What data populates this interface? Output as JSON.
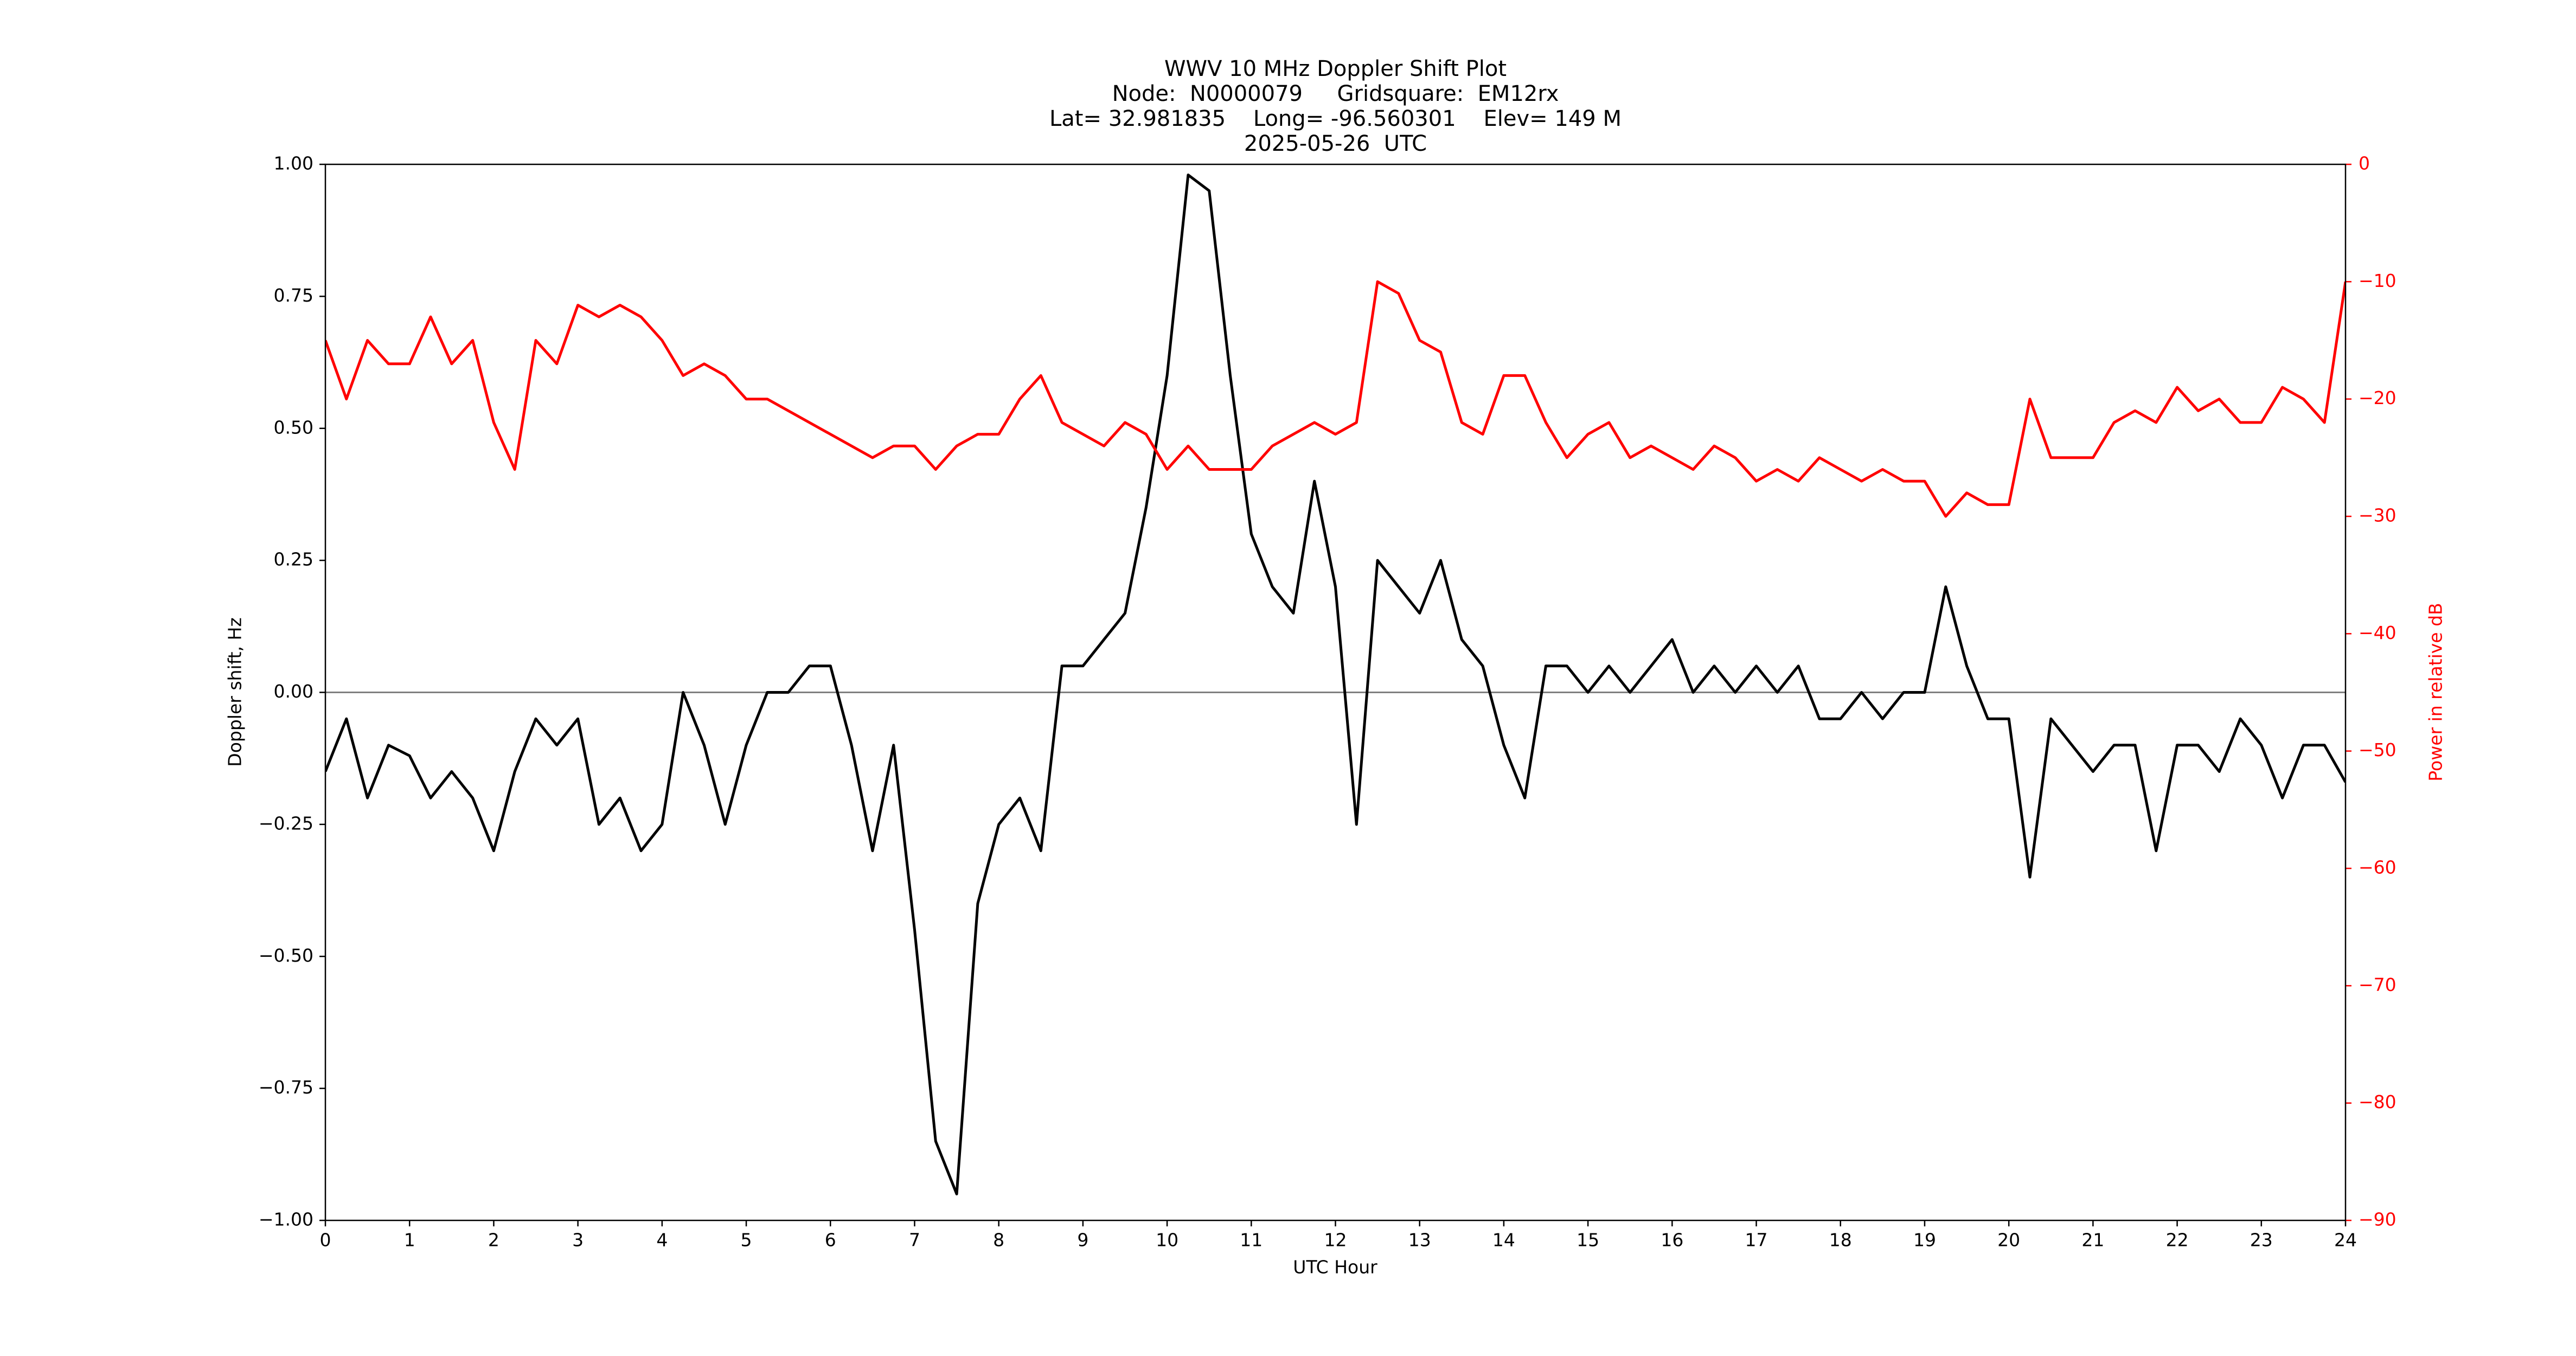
{
  "chart_data": {
    "type": "line",
    "title_lines": [
      "WWV 10 MHz Doppler Shift Plot",
      "Node:  N0000079     Gridsquare:  EM12rx",
      "Lat= 32.981835    Long= -96.560301    Elev= 149 M",
      "2025-05-26  UTC"
    ],
    "x_label": "UTC Hour",
    "y_label": "Doppler shift, Hz",
    "y2_label": "Power in relative dB",
    "x": [
      0,
      0.25,
      0.5,
      0.75,
      1,
      1.25,
      1.5,
      1.75,
      2,
      2.25,
      2.5,
      2.75,
      3,
      3.25,
      3.5,
      3.75,
      4,
      4.25,
      4.5,
      4.75,
      5,
      5.25,
      5.5,
      5.75,
      6,
      6.25,
      6.5,
      6.75,
      7,
      7.25,
      7.5,
      7.75,
      8,
      8.25,
      8.5,
      8.75,
      9,
      9.25,
      9.5,
      9.75,
      10,
      10.25,
      10.5,
      10.75,
      11,
      11.25,
      11.5,
      11.75,
      12,
      12.25,
      12.5,
      12.75,
      13,
      13.25,
      13.5,
      13.75,
      14,
      14.25,
      14.5,
      14.75,
      15,
      15.25,
      15.5,
      15.75,
      16,
      16.25,
      16.5,
      16.75,
      17,
      17.25,
      17.5,
      17.75,
      18,
      18.25,
      18.5,
      18.75,
      19,
      19.25,
      19.5,
      19.75,
      20,
      20.25,
      20.5,
      20.75,
      21,
      21.25,
      21.5,
      21.75,
      22,
      22.25,
      22.5,
      22.75,
      23,
      23.25,
      23.5,
      23.75,
      24
    ],
    "series": [
      {
        "name": "Doppler shift",
        "color": "#000000",
        "axis": "y",
        "values": [
          -0.15,
          -0.05,
          -0.2,
          -0.1,
          -0.12,
          -0.2,
          -0.15,
          -0.2,
          -0.3,
          -0.15,
          -0.05,
          -0.1,
          -0.05,
          -0.25,
          -0.2,
          -0.3,
          -0.25,
          0,
          -0.1,
          -0.25,
          -0.1,
          0,
          0,
          0.05,
          0.05,
          -0.1,
          -0.3,
          -0.1,
          -0.45,
          -0.85,
          -0.95,
          -0.4,
          -0.25,
          -0.2,
          -0.3,
          0.05,
          0.05,
          0.1,
          0.15,
          0.35,
          0.6,
          0.98,
          0.95,
          0.6,
          0.3,
          0.2,
          0.15,
          0.4,
          0.2,
          -0.25,
          0.25,
          0.2,
          0.15,
          0.25,
          0.1,
          0.05,
          -0.1,
          -0.2,
          0.05,
          0.05,
          0,
          0.05,
          0,
          0.05,
          0.1,
          0,
          0.05,
          0,
          0.05,
          0,
          0.05,
          -0.05,
          -0.05,
          0,
          -0.05,
          0,
          0,
          0.2,
          0.05,
          -0.05,
          -0.05,
          -0.35,
          -0.05,
          -0.1,
          -0.15,
          -0.1,
          -0.1,
          -0.3,
          -0.1,
          -0.1,
          -0.15,
          -0.05,
          -0.1,
          -0.2,
          -0.1,
          -0.1,
          -0.17
        ]
      },
      {
        "name": "Power",
        "color": "#ff0000",
        "axis": "y2",
        "values": [
          -15,
          -20,
          -15,
          -17,
          -17,
          -13,
          -17,
          -15,
          -22,
          -26,
          -15,
          -17,
          -12,
          -13,
          -12,
          -13,
          -15,
          -18,
          -17,
          -18,
          -20,
          -20,
          -21,
          -22,
          -23,
          -24,
          -25,
          -24,
          -24,
          -26,
          -24,
          -23,
          -23,
          -20,
          -18,
          -22,
          -23,
          -24,
          -22,
          -23,
          -26,
          -24,
          -26,
          -26,
          -26,
          -24,
          -23,
          -22,
          -23,
          -22,
          -10,
          -11,
          -15,
          -16,
          -22,
          -23,
          -18,
          -18,
          -22,
          -25,
          -23,
          -22,
          -25,
          -24,
          -25,
          -26,
          -24,
          -25,
          -27,
          -26,
          -27,
          -25,
          -26,
          -27,
          -26,
          -27,
          -27,
          -30,
          -28,
          -29,
          -29,
          -20,
          -25,
          -25,
          -25,
          -22,
          -21,
          -22,
          -19,
          -21,
          -20,
          -22,
          -22,
          -19,
          -20,
          -22,
          -10
        ]
      }
    ],
    "xlim": [
      0,
      24
    ],
    "xticks": [
      0,
      1,
      2,
      3,
      4,
      5,
      6,
      7,
      8,
      9,
      10,
      11,
      12,
      13,
      14,
      15,
      16,
      17,
      18,
      19,
      20,
      21,
      22,
      23,
      24
    ],
    "ylim": [
      -1,
      1
    ],
    "yticks": [
      {
        "value": -1,
        "label": "−1.00"
      },
      {
        "value": -0.75,
        "label": "−0.75"
      },
      {
        "value": -0.5,
        "label": "−0.50"
      },
      {
        "value": -0.25,
        "label": "−0.25"
      },
      {
        "value": 0,
        "label": "0.00"
      },
      {
        "value": 0.25,
        "label": "0.25"
      },
      {
        "value": 0.5,
        "label": "0.50"
      },
      {
        "value": 0.75,
        "label": "0.75"
      },
      {
        "value": 1,
        "label": "1.00"
      }
    ],
    "y2lim": [
      -90,
      0
    ],
    "y2ticks": [
      {
        "value": -90,
        "label": "−90"
      },
      {
        "value": -80,
        "label": "−80"
      },
      {
        "value": -70,
        "label": "−70"
      },
      {
        "value": -60,
        "label": "−60"
      },
      {
        "value": -50,
        "label": "−50"
      },
      {
        "value": -40,
        "label": "−40"
      },
      {
        "value": -30,
        "label": "−30"
      },
      {
        "value": -20,
        "label": "−20"
      },
      {
        "value": -10,
        "label": "−10"
      },
      0
    ],
    "y2_color": "#ff0000",
    "zero_line_color": "#808080"
  }
}
